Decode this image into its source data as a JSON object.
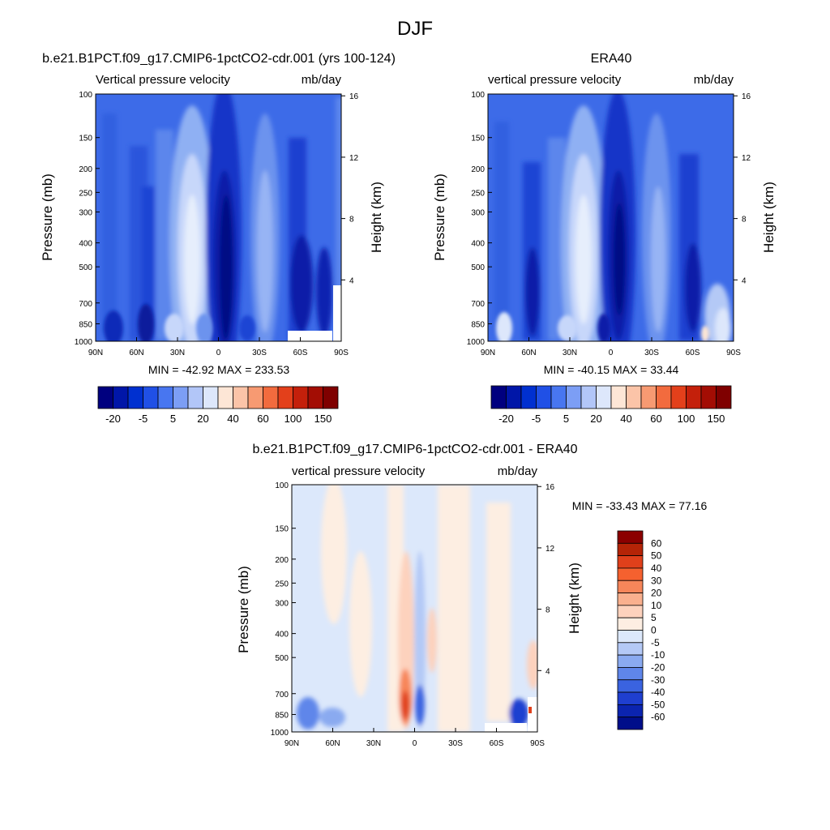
{
  "figure_title": "DJF",
  "chart_data": [
    {
      "type": "contour",
      "id": "model",
      "title": "b.e21.B1PCT.f09_g17.CMIP6-1pctCO2-cdr.001 (yrs 100-124)",
      "left_string": "Vertical pressure velocity",
      "right_string": "mb/day",
      "ylabel": "Pressure (mb)",
      "y2label": "Height (km)",
      "x_ticks": [
        "90N",
        "60N",
        "30N",
        "0",
        "30S",
        "60S",
        "90S"
      ],
      "x_tick_lat": [
        90,
        60,
        30,
        0,
        -30,
        -60,
        -90
      ],
      "y_ticks": [
        100,
        150,
        200,
        250,
        300,
        400,
        500,
        700,
        850,
        1000
      ],
      "y_range_mb": [
        100,
        1000
      ],
      "y_log": true,
      "height_ticks_km": [
        4,
        8,
        12,
        16
      ],
      "stats": "MIN = -42.92  MAX = 233.53",
      "colorbar": {
        "orientation": "horizontal",
        "levels": [
          "-20",
          "-5",
          "5",
          "20",
          "40",
          "60",
          "100",
          "150"
        ],
        "colors": [
          "#00007f",
          "#0016a8",
          "#0030d0",
          "#2050e6",
          "#4876f0",
          "#7c9ef5",
          "#b2c6f8",
          "#dde7fb",
          "#fde6d6",
          "#fbc4a8",
          "#f79a72",
          "#f26b3e",
          "#e3401b",
          "#c4200b",
          "#a30d04",
          "#7f0000"
        ]
      }
    },
    {
      "type": "contour",
      "id": "obs",
      "title": "ERA40",
      "left_string": "vertical pressure velocity",
      "right_string": "mb/day",
      "ylabel": "Pressure (mb)",
      "y2label": "Height (km)",
      "x_ticks": [
        "90N",
        "60N",
        "30N",
        "0",
        "30S",
        "60S",
        "90S"
      ],
      "x_tick_lat": [
        90,
        60,
        30,
        0,
        -30,
        -60,
        -90
      ],
      "y_ticks": [
        100,
        150,
        200,
        250,
        300,
        400,
        500,
        700,
        850,
        1000
      ],
      "y_range_mb": [
        100,
        1000
      ],
      "y_log": true,
      "height_ticks_km": [
        4,
        8,
        12,
        16
      ],
      "stats": "MIN = -40.15  MAX =  33.44",
      "colorbar": {
        "orientation": "horizontal",
        "levels": [
          "-20",
          "-5",
          "5",
          "20",
          "40",
          "60",
          "100",
          "150"
        ],
        "colors": [
          "#00007f",
          "#0016a8",
          "#0030d0",
          "#2050e6",
          "#4876f0",
          "#7c9ef5",
          "#b2c6f8",
          "#dde7fb",
          "#fde6d6",
          "#fbc4a8",
          "#f79a72",
          "#f26b3e",
          "#e3401b",
          "#c4200b",
          "#a30d04",
          "#7f0000"
        ]
      }
    },
    {
      "type": "contour",
      "id": "diff",
      "title": "b.e21.B1PCT.f09_g17.CMIP6-1pctCO2-cdr.001 - ERA40",
      "left_string": "vertical pressure velocity",
      "right_string": "mb/day",
      "ylabel": "Pressure (mb)",
      "y2label": "Height (km)",
      "x_ticks": [
        "90N",
        "60N",
        "30N",
        "0",
        "30S",
        "60S",
        "90S"
      ],
      "x_tick_lat": [
        90,
        60,
        30,
        0,
        -30,
        -60,
        -90
      ],
      "y_ticks": [
        100,
        150,
        200,
        250,
        300,
        400,
        500,
        700,
        850,
        1000
      ],
      "y_range_mb": [
        100,
        1000
      ],
      "y_log": true,
      "height_ticks_km": [
        4,
        8,
        12,
        16
      ],
      "stats": "MIN = -33.43  MAX =  77.16",
      "colorbar": {
        "orientation": "vertical",
        "levels": [
          "60",
          "50",
          "40",
          "30",
          "20",
          "10",
          "5",
          "0",
          "-5",
          "-10",
          "-20",
          "-30",
          "-40",
          "-50",
          "-60"
        ],
        "colors": [
          "#8b0000",
          "#b52407",
          "#e0401b",
          "#f5612f",
          "#f7865a",
          "#fab08e",
          "#fdd2bd",
          "#fdeee2",
          "#dce8fb",
          "#b4c9f6",
          "#8aaaf0",
          "#5f86ea",
          "#3a63e0",
          "#1f3fd0",
          "#0b24b0",
          "#000e8a"
        ]
      }
    }
  ]
}
